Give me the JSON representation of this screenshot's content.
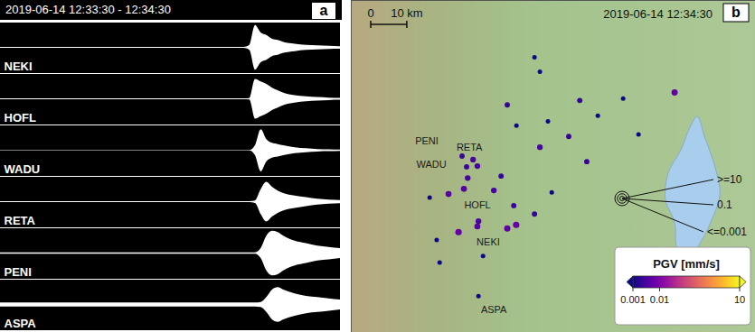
{
  "chart_data": [
    {
      "type": "waveform",
      "panel_label": "a",
      "title": "2019-06-14 12:33:30 - 12:34:30",
      "x": [
        0,
        42,
        43,
        44,
        45,
        46,
        47,
        48,
        49,
        50,
        52,
        54,
        56,
        58,
        60
      ],
      "xlim": [
        0,
        60
      ],
      "ylim": [
        -1,
        1
      ],
      "tick_labels": false,
      "color": "#ffffff",
      "series": [
        {
          "name": "NEKI",
          "values": [
            0.02,
            0.02,
            0.02,
            0.1,
            0.9,
            0.6,
            0.5,
            0.35,
            0.3,
            0.22,
            0.15,
            0.1,
            0.08,
            0.06,
            0.05
          ]
        },
        {
          "name": "HOFL",
          "values": [
            0.02,
            0.02,
            0.02,
            0.03,
            0.8,
            0.7,
            0.6,
            0.45,
            0.35,
            0.25,
            0.15,
            0.1,
            0.07,
            0.05,
            0.04
          ]
        },
        {
          "name": "WADU",
          "values": [
            0.01,
            0.01,
            0.01,
            0.01,
            0.2,
            0.85,
            0.45,
            0.3,
            0.25,
            0.2,
            0.12,
            0.08,
            0.05,
            0.04,
            0.03
          ]
        },
        {
          "name": "RETA",
          "values": [
            0.02,
            0.02,
            0.02,
            0.02,
            0.05,
            0.5,
            0.8,
            0.6,
            0.45,
            0.35,
            0.25,
            0.18,
            0.12,
            0.08,
            0.06
          ]
        },
        {
          "name": "PENI",
          "values": [
            0.03,
            0.03,
            0.03,
            0.03,
            0.03,
            0.2,
            0.7,
            0.9,
            0.85,
            0.7,
            0.5,
            0.4,
            0.3,
            0.25,
            0.2
          ]
        },
        {
          "name": "ASPA",
          "values": [
            0.08,
            0.08,
            0.08,
            0.08,
            0.08,
            0.1,
            0.3,
            0.6,
            0.7,
            0.6,
            0.45,
            0.35,
            0.3,
            0.25,
            0.2
          ]
        }
      ]
    },
    {
      "type": "map",
      "panel_label": "b",
      "title": "2019-06-14 12:34:30",
      "xlim": [
        15.55,
        17.05
      ],
      "ylim": [
        47.43,
        48.26
      ],
      "tick_labels": false,
      "points": [
        {
          "lon": 16.23,
          "lat": 48.118,
          "pgv": 0.001
        },
        {
          "lon": 16.25,
          "lat": 48.082,
          "pgv": 0.001
        },
        {
          "lon": 16.75,
          "lat": 48.03,
          "pgv": 0.005
        },
        {
          "lon": 16.129,
          "lat": 47.999,
          "pgv": 0.002
        },
        {
          "lon": 16.398,
          "lat": 48.01,
          "pgv": 0.002
        },
        {
          "lon": 16.559,
          "lat": 48.015,
          "pgv": 0.001
        },
        {
          "lon": 16.465,
          "lat": 47.972,
          "pgv": 0.001
        },
        {
          "lon": 16.28,
          "lat": 47.958,
          "pgv": 0.001
        },
        {
          "lon": 16.163,
          "lat": 47.947,
          "pgv": 0.001
        },
        {
          "lon": 16.357,
          "lat": 47.92,
          "pgv": 0.002
        },
        {
          "lon": 16.25,
          "lat": 47.893,
          "pgv": 0.003
        },
        {
          "lon": 16.616,
          "lat": 47.925,
          "pgv": 0.001
        },
        {
          "lon": 16.424,
          "lat": 47.857,
          "pgv": 0.002
        },
        {
          "lon": 16.106,
          "lat": 47.821,
          "pgv": 0.002
        },
        {
          "lon": 16.079,
          "lat": 47.785,
          "pgv": 0.003
        },
        {
          "lon": 16.018,
          "lat": 47.846,
          "pgv": 0.003
        },
        {
          "lon": 15.982,
          "lat": 47.816,
          "pgv": 0.003
        },
        {
          "lon": 15.911,
          "lat": 47.776,
          "pgv": 0.004
        },
        {
          "lon": 15.841,
          "lat": 47.767,
          "pgv": 0.001
        },
        {
          "lon": 16.153,
          "lat": 47.747,
          "pgv": 0.002
        },
        {
          "lon": 16.23,
          "lat": 47.726,
          "pgv": 0.002
        },
        {
          "lon": 16.294,
          "lat": 47.78,
          "pgv": 0.001
        },
        {
          "lon": 16.162,
          "lat": 47.699,
          "pgv": 0.006
        },
        {
          "lon": 16.022,
          "lat": 47.708,
          "pgv": 0.003
        },
        {
          "lon": 15.948,
          "lat": 47.681,
          "pgv": 0.006
        },
        {
          "lon": 16.129,
          "lat": 47.69,
          "pgv": 0.005
        },
        {
          "lon": 15.867,
          "lat": 47.661,
          "pgv": 0.001
        },
        {
          "lon": 15.878,
          "lat": 47.605,
          "pgv": 0.001
        },
        {
          "lon": 16.039,
          "lat": 47.621,
          "pgv": 0.001
        }
      ],
      "stations": [
        {
          "name": "PENI",
          "lon": 15.961,
          "lat": 47.871,
          "pgv": 0.002
        },
        {
          "name": "RETA",
          "lon": 16.002,
          "lat": 47.862,
          "pgv": 0.003
        },
        {
          "name": "WADU",
          "lon": 15.978,
          "lat": 47.844,
          "pgv": 0.002
        },
        {
          "name": "HOFL",
          "lon": 15.968,
          "lat": 47.789,
          "pgv": 0.004
        },
        {
          "name": "NEKI",
          "lon": 16.018,
          "lat": 47.695,
          "pgv": 0.004
        },
        {
          "name": "ASPA",
          "lon": 16.022,
          "lat": 47.521,
          "pgv": 0.001
        }
      ],
      "lake": [
        [
          16.834,
          47.97
        ],
        [
          16.861,
          47.92
        ],
        [
          16.901,
          47.841
        ],
        [
          16.918,
          47.774
        ],
        [
          16.884,
          47.706
        ],
        [
          16.851,
          47.661
        ],
        [
          16.8,
          47.616
        ],
        [
          16.76,
          47.639
        ],
        [
          16.75,
          47.706
        ],
        [
          16.716,
          47.762
        ],
        [
          16.727,
          47.83
        ],
        [
          16.773,
          47.886
        ],
        [
          16.807,
          47.943
        ]
      ],
      "scale_bar": {
        "ticks": [
          0,
          {
            "value": 10,
            "label": "10 km"
          }
        ]
      },
      "size_legend": [
        {
          "value": 10,
          "label": ">=10"
        },
        {
          "value": 0.1,
          "label": "0.1"
        },
        {
          "value": 0.001,
          "label": "<=0.001"
        }
      ],
      "colorbar": {
        "label": "PGV [mm/s]",
        "range": [
          0.001,
          10
        ],
        "ticks": [
          0.001,
          0.01,
          10
        ],
        "log": true
      }
    }
  ]
}
